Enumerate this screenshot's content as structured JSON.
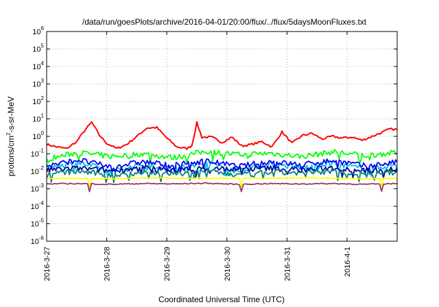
{
  "chart_data": {
    "type": "line",
    "title": "/data/run/goesPlots/archive/2016-04-01/20:00/flux/../flux/5daysMoonFluxes.txt",
    "xlabel": "Coordinated Universal Time (UTC)",
    "ylabel": {
      "base": "protons/cm",
      "sup": "2",
      "rest": "-s-sr-MeV"
    },
    "y_scale": "log",
    "ylim": [
      1e-06,
      1000000.0
    ],
    "y_ticks": [
      {
        "value": 1e-06,
        "base": "10",
        "exp": "-6"
      },
      {
        "value": 1e-05,
        "base": "10",
        "exp": "-5"
      },
      {
        "value": 0.0001,
        "base": "10",
        "exp": "-4"
      },
      {
        "value": 0.001,
        "base": "10",
        "exp": "-3"
      },
      {
        "value": 0.01,
        "base": "10",
        "exp": "-2"
      },
      {
        "value": 0.1,
        "base": "10",
        "exp": "-1"
      },
      {
        "value": 1,
        "base": "10",
        "exp": "0"
      },
      {
        "value": 10,
        "base": "10",
        "exp": "1"
      },
      {
        "value": 100,
        "base": "10",
        "exp": "2"
      },
      {
        "value": 1000,
        "base": "10",
        "exp": "3"
      },
      {
        "value": 10000,
        "base": "10",
        "exp": "4"
      },
      {
        "value": 100000,
        "base": "10",
        "exp": "5"
      },
      {
        "value": 1000000,
        "base": "10",
        "exp": "6"
      }
    ],
    "xlim": [
      "2016-03-27",
      "2016-04-01T20:00"
    ],
    "x_ticks": [
      {
        "value": "2016-03-27",
        "label": "2016-3-27"
      },
      {
        "value": "2016-03-28",
        "label": "2016-3-28"
      },
      {
        "value": "2016-03-29",
        "label": "2016-3-29"
      },
      {
        "value": "2016-03-30",
        "label": "2016-3-30"
      },
      {
        "value": "2016-03-31",
        "label": "2016-3-31"
      },
      {
        "value": "2016-04-01",
        "label": "2016-4-1"
      }
    ],
    "grid": true,
    "grid_style": "dotted",
    "series": [
      {
        "color": "#ff0000",
        "style": "smooth",
        "x": [
          "2016-03-27T00:00",
          "2016-03-27T04:00",
          "2016-03-27T08:00",
          "2016-03-27T12:00",
          "2016-03-27T15:00",
          "2016-03-27T18:00",
          "2016-03-27T21:00",
          "2016-03-28T00:00",
          "2016-03-28T04:00",
          "2016-03-28T08:00",
          "2016-03-28T12:00",
          "2016-03-28T16:00",
          "2016-03-28T20:00",
          "2016-03-29T00:00",
          "2016-03-29T04:00",
          "2016-03-29T08:00",
          "2016-03-29T10:00",
          "2016-03-29T12:00",
          "2016-03-29T14:00",
          "2016-03-29T18:00",
          "2016-03-29T22:00",
          "2016-03-30T02:00",
          "2016-03-30T06:00",
          "2016-03-30T10:00",
          "2016-03-30T14:00",
          "2016-03-30T18:00",
          "2016-03-30T22:00",
          "2016-03-31T02:00",
          "2016-03-31T06:00",
          "2016-03-31T10:00",
          "2016-03-31T14:00",
          "2016-03-31T18:00",
          "2016-03-31T22:00",
          "2016-04-01T02:00",
          "2016-04-01T06:00",
          "2016-04-01T10:00",
          "2016-04-01T14:00",
          "2016-04-01T17:00",
          "2016-04-01T20:00"
        ],
        "values": [
          0.35,
          0.25,
          0.2,
          0.5,
          2.0,
          6.5,
          1.2,
          0.4,
          0.2,
          0.35,
          1.0,
          3.0,
          3.2,
          0.8,
          0.25,
          0.2,
          0.3,
          6.0,
          0.9,
          0.9,
          0.45,
          0.9,
          0.28,
          0.35,
          0.5,
          0.25,
          1.8,
          0.4,
          1.1,
          1.5,
          0.7,
          1.0,
          0.8,
          0.9,
          0.6,
          1.0,
          1.7,
          2.6,
          2.5
        ]
      },
      {
        "color": "#00ff00",
        "style": "noisy",
        "values": [
          0.05,
          0.12,
          0.07,
          0.1,
          0.06,
          0.14,
          0.09,
          0.11,
          0.07,
          0.13,
          0.08,
          0.12
        ]
      },
      {
        "color": "#00c0e0",
        "style": "noisy",
        "values": [
          0.018,
          0.03,
          0.011,
          0.025,
          0.014,
          0.032,
          0.012,
          0.026,
          0.016,
          0.03,
          0.013,
          0.024
        ]
      },
      {
        "color": "#0000ff",
        "style": "noisy",
        "values": [
          0.02,
          0.045,
          0.018,
          0.035,
          0.022,
          0.04,
          0.019,
          0.036,
          0.024,
          0.042,
          0.02,
          0.033
        ]
      },
      {
        "color": "#000099",
        "style": "noisy",
        "values": [
          0.012,
          0.015,
          0.011,
          0.016,
          0.012,
          0.014,
          0.013,
          0.015,
          0.012,
          0.016,
          0.011,
          0.014
        ]
      },
      {
        "color": "#008080",
        "style": "noisy",
        "values": [
          0.007,
          0.01,
          0.006,
          0.009,
          0.007,
          0.011,
          0.006,
          0.009,
          0.008,
          0.01,
          0.007,
          0.009
        ]
      },
      {
        "color": "#ffff00",
        "style": "flat",
        "values": [
          0.004,
          0.004,
          0.0038,
          0.0042,
          0.004,
          0.004,
          0.0039,
          0.004,
          0.0041,
          0.004,
          0.0038,
          0.004
        ]
      },
      {
        "color": "#993366",
        "style": "flat",
        "values": [
          0.0019,
          0.002,
          0.0018,
          0.002,
          0.0019,
          0.0021,
          0.0018,
          0.002,
          0.0019,
          0.002,
          0.0018,
          0.002
        ]
      }
    ]
  }
}
